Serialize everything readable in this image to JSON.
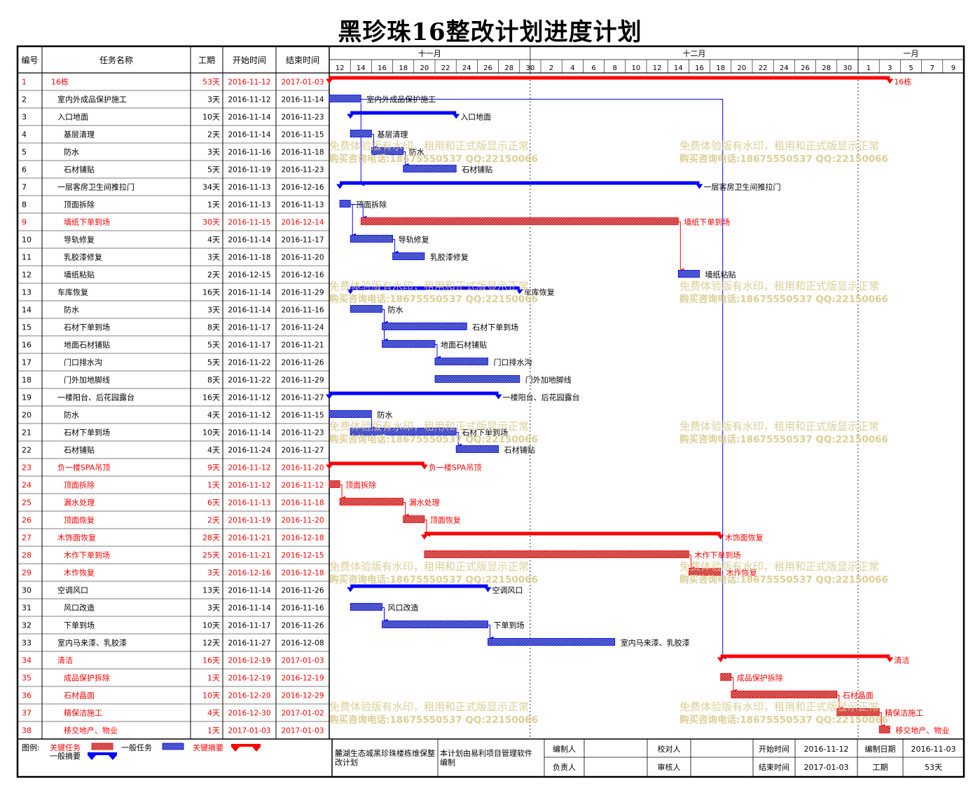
{
  "title": "黑珍珠16整改计划进度计划",
  "columns": [
    "编号",
    "任务名称",
    "工期",
    "开始时间",
    "结束时间"
  ],
  "months": [
    "十一月",
    "十二月",
    "一月"
  ],
  "day_ticks": [
    "12",
    "14",
    "16",
    "18",
    "20",
    "22",
    "24",
    "26",
    "28",
    "30",
    "2",
    "4",
    "6",
    "8",
    "10",
    "12",
    "14",
    "16",
    "18",
    "20",
    "22",
    "24",
    "26",
    "28",
    "30",
    "1",
    "3",
    "5",
    "7",
    "9"
  ],
  "colors": {
    "critical": "#ff0000",
    "normal": "#0000ff",
    "critical_fill": "#e05050",
    "normal_fill": "#4a5ad0",
    "watermark": "#d9c98a"
  },
  "chart_data": {
    "type": "gantt",
    "x_start": "2016-11-12",
    "x_end": "2017-01-10",
    "tasks": [
      {
        "id": "1",
        "name": "16栋",
        "dur": "53天",
        "start": "2016-11-12",
        "end": "2017-01-03",
        "kind": "summary",
        "crit": true,
        "indent": 0,
        "bar_label": "16栋"
      },
      {
        "id": "2",
        "name": "室内外成品保护施工",
        "dur": "3天",
        "start": "2016-11-12",
        "end": "2016-11-14",
        "kind": "task",
        "crit": false,
        "indent": 1,
        "bar_label": "室内外成品保护施工"
      },
      {
        "id": "3",
        "name": "入口地面",
        "dur": "10天",
        "start": "2016-11-14",
        "end": "2016-11-23",
        "kind": "summary",
        "crit": false,
        "indent": 1,
        "bar_label": "入口地面"
      },
      {
        "id": "4",
        "name": "基层清理",
        "dur": "2天",
        "start": "2016-11-14",
        "end": "2016-11-15",
        "kind": "task",
        "crit": false,
        "indent": 2,
        "bar_label": "基层清理"
      },
      {
        "id": "5",
        "name": "防水",
        "dur": "3天",
        "start": "2016-11-16",
        "end": "2016-11-18",
        "kind": "task",
        "crit": false,
        "indent": 2,
        "bar_label": "防水"
      },
      {
        "id": "6",
        "name": "石材铺贴",
        "dur": "5天",
        "start": "2016-11-19",
        "end": "2016-11-23",
        "kind": "task",
        "crit": false,
        "indent": 2,
        "bar_label": "石材铺贴"
      },
      {
        "id": "7",
        "name": "一层客房卫生间推拉门",
        "dur": "34天",
        "start": "2016-11-13",
        "end": "2016-12-16",
        "kind": "summary",
        "crit": false,
        "indent": 1,
        "bar_label": "一层客房卫生间推拉门"
      },
      {
        "id": "8",
        "name": "顶面拆除",
        "dur": "1天",
        "start": "2016-11-13",
        "end": "2016-11-13",
        "kind": "task",
        "crit": false,
        "indent": 2,
        "bar_label": "顶面拆除"
      },
      {
        "id": "9",
        "name": "墙纸下单到场",
        "dur": "30天",
        "start": "2016-11-15",
        "end": "2016-12-14",
        "kind": "task",
        "crit": true,
        "indent": 2,
        "bar_label": "墙纸下单到场"
      },
      {
        "id": "10",
        "name": "导轨修复",
        "dur": "4天",
        "start": "2016-11-14",
        "end": "2016-11-17",
        "kind": "task",
        "crit": false,
        "indent": 2,
        "bar_label": "导轨修复"
      },
      {
        "id": "11",
        "name": "乳胶漆修复",
        "dur": "3天",
        "start": "2016-11-18",
        "end": "2016-11-20",
        "kind": "task",
        "crit": false,
        "indent": 2,
        "bar_label": "乳胶漆修复"
      },
      {
        "id": "12",
        "name": "墙纸粘贴",
        "dur": "2天",
        "start": "2016-12-15",
        "end": "2016-12-16",
        "kind": "task",
        "crit": false,
        "indent": 2,
        "bar_label": "墙纸粘贴"
      },
      {
        "id": "13",
        "name": "车库恢复",
        "dur": "16天",
        "start": "2016-11-14",
        "end": "2016-11-29",
        "kind": "summary",
        "crit": false,
        "indent": 1,
        "bar_label": "车库恢复"
      },
      {
        "id": "14",
        "name": "防水",
        "dur": "3天",
        "start": "2016-11-14",
        "end": "2016-11-16",
        "kind": "task",
        "crit": false,
        "indent": 2,
        "bar_label": "防水"
      },
      {
        "id": "15",
        "name": "石材下单到场",
        "dur": "8天",
        "start": "2016-11-17",
        "end": "2016-11-24",
        "kind": "task",
        "crit": false,
        "indent": 2,
        "bar_label": "石材下单到场"
      },
      {
        "id": "16",
        "name": "地面石材铺贴",
        "dur": "5天",
        "start": "2016-11-17",
        "end": "2016-11-21",
        "kind": "task",
        "crit": false,
        "indent": 2,
        "bar_label": "地面石材铺贴"
      },
      {
        "id": "17",
        "name": "门口排水沟",
        "dur": "5天",
        "start": "2016-11-22",
        "end": "2016-11-26",
        "kind": "task",
        "crit": false,
        "indent": 2,
        "bar_label": "门口排水沟"
      },
      {
        "id": "18",
        "name": "门外加地脚线",
        "dur": "8天",
        "start": "2016-11-22",
        "end": "2016-11-29",
        "kind": "task",
        "crit": false,
        "indent": 2,
        "bar_label": "门外加地脚线"
      },
      {
        "id": "19",
        "name": "一楼阳台、后花园露台",
        "dur": "16天",
        "start": "2016-11-12",
        "end": "2016-11-27",
        "kind": "summary",
        "crit": false,
        "indent": 1,
        "bar_label": "一楼阳台、后花园露台"
      },
      {
        "id": "20",
        "name": "防水",
        "dur": "4天",
        "start": "2016-11-12",
        "end": "2016-11-15",
        "kind": "task",
        "crit": false,
        "indent": 2,
        "bar_label": "防水"
      },
      {
        "id": "21",
        "name": "石材下单到场",
        "dur": "10天",
        "start": "2016-11-14",
        "end": "2016-11-23",
        "kind": "task",
        "crit": false,
        "indent": 2,
        "bar_label": "石材下单到场"
      },
      {
        "id": "22",
        "name": "石材铺贴",
        "dur": "4天",
        "start": "2016-11-24",
        "end": "2016-11-27",
        "kind": "task",
        "crit": false,
        "indent": 2,
        "bar_label": "石材铺贴"
      },
      {
        "id": "23",
        "name": "负一楼SPA吊顶",
        "dur": "9天",
        "start": "2016-11-12",
        "end": "2016-11-20",
        "kind": "summary",
        "crit": true,
        "indent": 1,
        "bar_label": "负一楼SPA吊顶"
      },
      {
        "id": "24",
        "name": "顶面拆除",
        "dur": "1天",
        "start": "2016-11-12",
        "end": "2016-11-12",
        "kind": "task",
        "crit": true,
        "indent": 2,
        "bar_label": "顶面拆除"
      },
      {
        "id": "25",
        "name": "漏水处理",
        "dur": "6天",
        "start": "2016-11-13",
        "end": "2016-11-18",
        "kind": "task",
        "crit": true,
        "indent": 2,
        "bar_label": "漏水处理"
      },
      {
        "id": "26",
        "name": "顶面恢复",
        "dur": "2天",
        "start": "2016-11-19",
        "end": "2016-11-20",
        "kind": "task",
        "crit": true,
        "indent": 2,
        "bar_label": "顶面恢复"
      },
      {
        "id": "27",
        "name": "木饰面恢复",
        "dur": "28天",
        "start": "2016-11-21",
        "end": "2016-12-18",
        "kind": "summary",
        "crit": true,
        "indent": 1,
        "bar_label": "木饰面恢复"
      },
      {
        "id": "28",
        "name": "木作下单到场",
        "dur": "25天",
        "start": "2016-11-21",
        "end": "2016-12-15",
        "kind": "task",
        "crit": true,
        "indent": 2,
        "bar_label": "木作下单到场"
      },
      {
        "id": "29",
        "name": "木作恢复",
        "dur": "3天",
        "start": "2016-12-16",
        "end": "2016-12-18",
        "kind": "task",
        "crit": true,
        "indent": 2,
        "bar_label": "木作恢复"
      },
      {
        "id": "30",
        "name": "空调风口",
        "dur": "13天",
        "start": "2016-11-14",
        "end": "2016-11-26",
        "kind": "summary",
        "crit": false,
        "indent": 1,
        "bar_label": "空调风口"
      },
      {
        "id": "31",
        "name": "风口改造",
        "dur": "3天",
        "start": "2016-11-14",
        "end": "2016-11-16",
        "kind": "task",
        "crit": false,
        "indent": 2,
        "bar_label": "风口改造"
      },
      {
        "id": "32",
        "name": "下单到场",
        "dur": "10天",
        "start": "2016-11-17",
        "end": "2016-11-26",
        "kind": "task",
        "crit": false,
        "indent": 2,
        "bar_label": "下单到场"
      },
      {
        "id": "33",
        "name": "室内马来漆、乳胶漆",
        "dur": "12天",
        "start": "2016-11-27",
        "end": "2016-12-08",
        "kind": "task",
        "crit": false,
        "indent": 1,
        "bar_label": "室内马来漆、乳胶漆"
      },
      {
        "id": "34",
        "name": "清洁",
        "dur": "16天",
        "start": "2016-12-19",
        "end": "2017-01-03",
        "kind": "summary",
        "crit": true,
        "indent": 1,
        "bar_label": "清洁"
      },
      {
        "id": "35",
        "name": "成品保护拆除",
        "dur": "1天",
        "start": "2016-12-19",
        "end": "2016-12-19",
        "kind": "task",
        "crit": true,
        "indent": 2,
        "bar_label": "成品保护拆除"
      },
      {
        "id": "36",
        "name": "石材晶面",
        "dur": "10天",
        "start": "2016-12-20",
        "end": "2016-12-29",
        "kind": "task",
        "crit": true,
        "indent": 2,
        "bar_label": "石材晶面"
      },
      {
        "id": "37",
        "name": "精保洁施工",
        "dur": "4天",
        "start": "2016-12-30",
        "end": "2017-01-02",
        "kind": "task",
        "crit": true,
        "indent": 2,
        "bar_label": "精保洁施工"
      },
      {
        "id": "38",
        "name": "移交地产、物业",
        "dur": "1天",
        "start": "2017-01-03",
        "end": "2017-01-03",
        "kind": "task",
        "crit": true,
        "indent": 2,
        "bar_label": "移交地产、物业"
      }
    ],
    "links": [
      [
        "2",
        "7"
      ],
      [
        "2",
        "34"
      ],
      [
        "4",
        "5"
      ],
      [
        "5",
        "6"
      ],
      [
        "8",
        "9"
      ],
      [
        "8",
        "10"
      ],
      [
        "9",
        "12"
      ],
      [
        "10",
        "11"
      ],
      [
        "14",
        "15"
      ],
      [
        "14",
        "16"
      ],
      [
        "16",
        "17"
      ],
      [
        "20",
        "21"
      ],
      [
        "21",
        "22"
      ],
      [
        "24",
        "25"
      ],
      [
        "25",
        "26"
      ],
      [
        "26",
        "27"
      ],
      [
        "28",
        "29"
      ],
      [
        "31",
        "32"
      ],
      [
        "32",
        "33"
      ],
      [
        "35",
        "36"
      ],
      [
        "36",
        "37"
      ],
      [
        "37",
        "38"
      ]
    ]
  },
  "watermark": {
    "line1": "免费体验版有水印，租用和正式版显示正常",
    "line2": "购买咨询电话:18675550537 QQ:22150066"
  },
  "legend": {
    "label": "图例:",
    "critical_task": "关键任务",
    "normal_task": "一般任务",
    "critical_summary": "关键摘要",
    "normal_summary": "一般摘要"
  },
  "footer": {
    "project": "麓湖生态城黑珍珠楼栋维保整改计划",
    "note": "本计划由易利项目管理软件编制",
    "editor_label": "编制人",
    "editor_value": "",
    "owner_label": "负责人",
    "owner_value": "",
    "checker_label": "校对人",
    "checker_value": "",
    "reviewer_label": "审核人",
    "reviewer_value": "",
    "start_label": "开始时间",
    "start_value": "2016-11-12",
    "end_label": "结束时间",
    "end_value": "2017-01-03",
    "date_label": "编制日期",
    "date_value": "2016-11-03",
    "dur_label": "工期",
    "dur_value": "53天"
  }
}
